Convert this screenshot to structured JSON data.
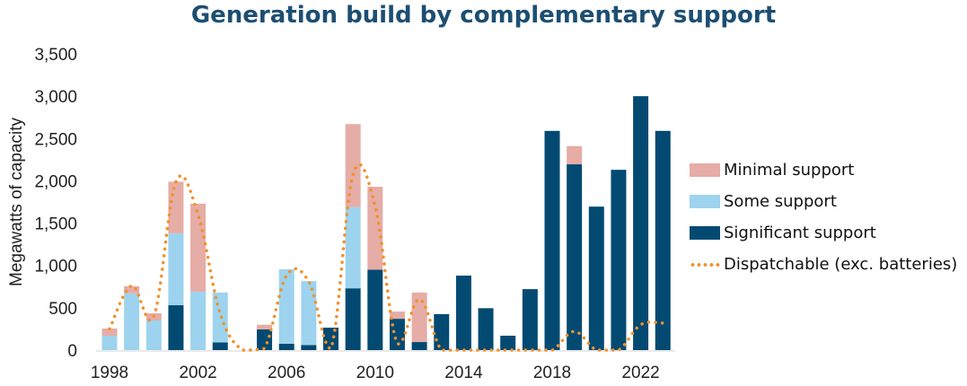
{
  "chart_data": {
    "type": "bar",
    "stacked": true,
    "title": "Generation build by complementary support",
    "xlabel": "",
    "ylabel": "Megawatts of capacity",
    "ylim": [
      0,
      3500
    ],
    "yticks": [
      "0",
      "500",
      "1,000",
      "1,500",
      "2,000",
      "2,500",
      "3,000",
      "3,500"
    ],
    "ytick_values": [
      0,
      500,
      1000,
      1500,
      2000,
      2500,
      3000,
      3500
    ],
    "xtick_labels": [
      "1998",
      "2002",
      "2006",
      "2010",
      "2014",
      "2018",
      "2022"
    ],
    "grid": false,
    "legend_position": "right",
    "categories": [
      "1998",
      "1999",
      "2000",
      "2001",
      "2002",
      "2003",
      "2004",
      "2005",
      "2006",
      "2007",
      "2008",
      "2009",
      "2010",
      "2011",
      "2012",
      "2013",
      "2014",
      "2015",
      "2016",
      "2017",
      "2018",
      "2019",
      "2020",
      "2021",
      "2022",
      "2023"
    ],
    "series": [
      {
        "name": "Significant support",
        "color": "#034a72",
        "values": [
          0,
          0,
          0,
          530,
          0,
          90,
          0,
          245,
          75,
          60,
          265,
          730,
          950,
          370,
          95,
          425,
          880,
          495,
          170,
          720,
          2590,
          2195,
          1695,
          2130,
          3000,
          2590
        ]
      },
      {
        "name": "Some support",
        "color": "#9dd3ee",
        "values": [
          170,
          670,
          350,
          850,
          690,
          590,
          0,
          0,
          880,
          755,
          0,
          960,
          0,
          0,
          0,
          0,
          0,
          0,
          0,
          0,
          0,
          0,
          0,
          0,
          0,
          0
        ]
      },
      {
        "name": "Minimal support",
        "color": "#e6aca6",
        "values": [
          85,
          85,
          85,
          610,
          1040,
          0,
          0,
          55,
          0,
          0,
          0,
          980,
          980,
          85,
          585,
          0,
          0,
          0,
          0,
          0,
          0,
          215,
          0,
          0,
          0,
          0
        ]
      }
    ],
    "line_series": {
      "name": "Dispatchable (exc. batteries)",
      "color": "#f0912a",
      "style": "dotted",
      "values": [
        250,
        760,
        400,
        1990,
        1600,
        430,
        0,
        20,
        880,
        810,
        20,
        2070,
        1700,
        80,
        600,
        0,
        0,
        0,
        0,
        0,
        0,
        220,
        0,
        0,
        300,
        320
      ]
    },
    "legend": [
      "Minimal support",
      "Some support",
      "Significant support",
      "Dispatchable (exc. batteries)"
    ]
  }
}
